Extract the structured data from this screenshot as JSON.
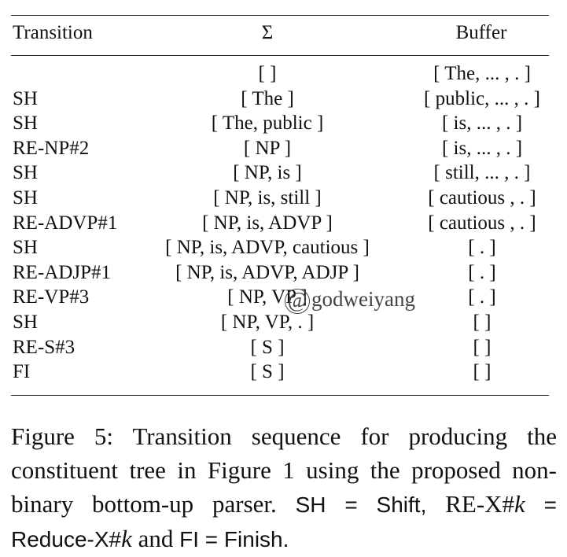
{
  "table": {
    "headers": {
      "transition": "Transition",
      "sigma": "Σ",
      "buffer": "Buffer"
    },
    "rows": [
      {
        "transition": "",
        "sigma": "[ ]",
        "buffer": "[ The, ... , . ]"
      },
      {
        "transition": "SH",
        "sigma": "[ The ]",
        "buffer": "[ public, ... , . ]"
      },
      {
        "transition": "SH",
        "sigma": "[ The, public ]",
        "buffer": "[ is, ... , . ]"
      },
      {
        "transition": "RE-NP#2",
        "sigma": "[ NP ]",
        "buffer": "[ is, ... , . ]"
      },
      {
        "transition": "SH",
        "sigma": "[ NP, is ]",
        "buffer": "[ still, ... , . ]"
      },
      {
        "transition": "SH",
        "sigma": "[ NP, is, still ]",
        "buffer": "[ cautious , . ]"
      },
      {
        "transition": "RE-ADVP#1",
        "sigma": "[ NP, is, ADVP ]",
        "buffer": "[ cautious , . ]"
      },
      {
        "transition": "SH",
        "sigma": "[ NP, is, ADVP, cautious ]",
        "buffer": "[ . ]"
      },
      {
        "transition": "RE-ADJP#1",
        "sigma": "[ NP, is, ADVP, ADJP ]",
        "buffer": "[ . ]"
      },
      {
        "transition": "RE-VP#3",
        "sigma": "[ NP, VP ]",
        "buffer": "[ . ]"
      },
      {
        "transition": "SH",
        "sigma": "[ NP, VP, . ]",
        "buffer": "[ ]"
      },
      {
        "transition": "RE-S#3",
        "sigma": "[ S ]",
        "buffer": "[ ]"
      },
      {
        "transition": "FI",
        "sigma": "[ S ]",
        "buffer": "[ ]"
      }
    ]
  },
  "watermark": {
    "symbol": "@",
    "text": "godweiyang"
  },
  "caption": {
    "lead": "Figure 5: Transition sequence for producing the constituent tree in Figure 1 using the proposed non-binary bottom-up parser.",
    "sh": "SH",
    "eq_shift": " = Shift, ",
    "re": "RE-X#",
    "k1": "k",
    "eq_reduce_a": " = Reduce-X#",
    "k2": "k",
    "and": " and ",
    "fi": "FI",
    "eq_finish": " = Finish."
  }
}
